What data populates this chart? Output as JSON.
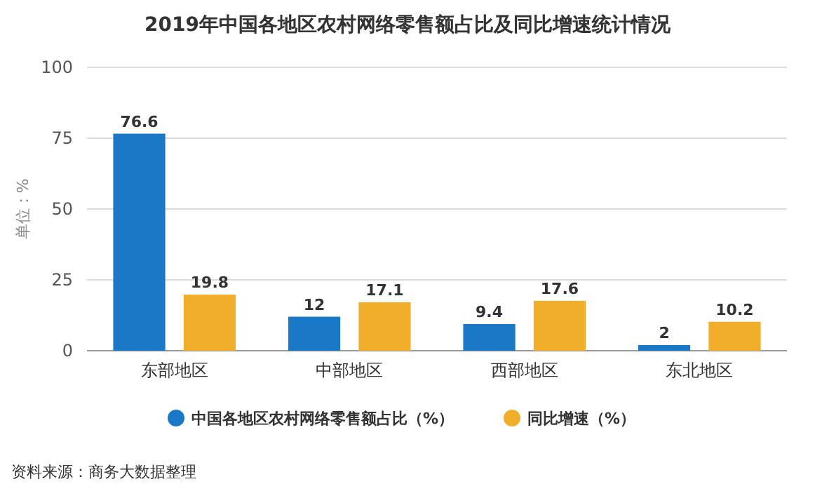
{
  "chart_data": {
    "type": "bar",
    "title": "2019年中国各地区农村网络零售额占比及同比增速统计情况",
    "ylabel": "单位：%",
    "categories": [
      "东部地区",
      "中部地区",
      "西部地区",
      "东北地区"
    ],
    "series": [
      {
        "name": "中国各地区农村网络零售额占比（%）",
        "color": "#1a78c6",
        "values": [
          76.6,
          12,
          9.4,
          2
        ]
      },
      {
        "name": "同比增速（%）",
        "color": "#f0ae2a",
        "values": [
          19.8,
          17.1,
          17.6,
          10.2
        ]
      }
    ],
    "ylim": [
      0,
      100
    ],
    "yticks": [
      0,
      25,
      50,
      75,
      100
    ],
    "grid": "y",
    "legend": "bottom",
    "data_labels": true,
    "annotations": [
      "资料来源：商务大数据整理"
    ]
  }
}
